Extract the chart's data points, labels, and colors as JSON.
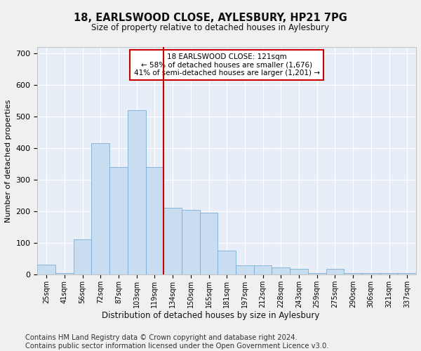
{
  "title": "18, EARLSWOOD CLOSE, AYLESBURY, HP21 7PG",
  "subtitle": "Size of property relative to detached houses in Aylesbury",
  "xlabel": "Distribution of detached houses by size in Aylesbury",
  "ylabel": "Number of detached properties",
  "bar_color": "#c9ddf0",
  "bar_edge_color": "#7aadd4",
  "background_color": "#e8eef8",
  "grid_color": "#ffffff",
  "vline_color": "#cc0000",
  "annotation_text": "18 EARLSWOOD CLOSE: 121sqm\n← 58% of detached houses are smaller (1,676)\n41% of semi-detached houses are larger (1,201) →",
  "annotation_box_color": "#ffffff",
  "annotation_box_edge": "#cc0000",
  "categories": [
    "25sqm",
    "41sqm",
    "56sqm",
    "72sqm",
    "87sqm",
    "103sqm",
    "119sqm",
    "134sqm",
    "150sqm",
    "165sqm",
    "181sqm",
    "197sqm",
    "212sqm",
    "228sqm",
    "243sqm",
    "259sqm",
    "275sqm",
    "290sqm",
    "306sqm",
    "321sqm",
    "337sqm"
  ],
  "values": [
    30,
    5,
    112,
    415,
    340,
    520,
    340,
    210,
    205,
    195,
    75,
    28,
    28,
    22,
    18,
    5,
    18,
    5,
    4,
    5,
    5
  ],
  "ylim": [
    0,
    720
  ],
  "yticks": [
    0,
    100,
    200,
    300,
    400,
    500,
    600,
    700
  ],
  "vline_idx": 6,
  "footer": "Contains HM Land Registry data © Crown copyright and database right 2024.\nContains public sector information licensed under the Open Government Licence v3.0.",
  "footer_fontsize": 7.2,
  "fig_facecolor": "#f0f0f0"
}
